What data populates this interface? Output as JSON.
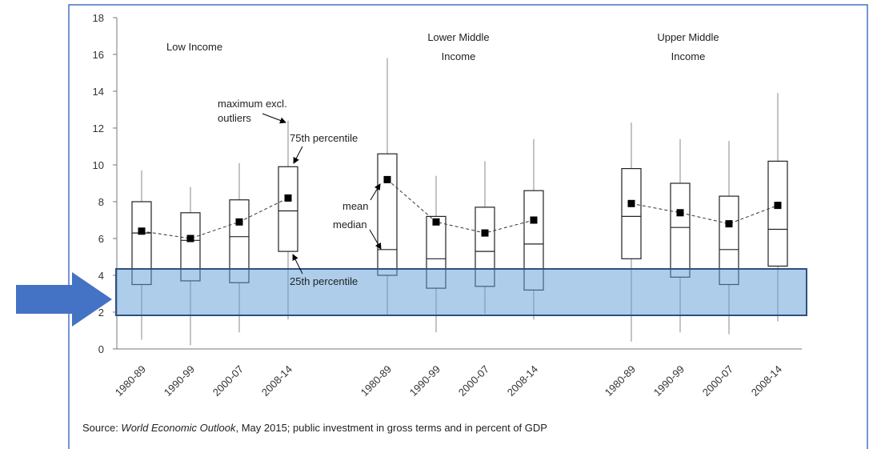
{
  "chart_data": {
    "type": "box",
    "ylim": [
      0,
      18
    ],
    "yticks": [
      0,
      2,
      4,
      6,
      8,
      10,
      12,
      14,
      16,
      18
    ],
    "groups": [
      {
        "label_lines": [
          "Low Income"
        ],
        "categories": [
          "1980-89",
          "1990-99",
          "2000-07",
          "2008-14"
        ],
        "min": [
          0.5,
          0.2,
          0.9,
          1.6
        ],
        "q1": [
          3.5,
          3.7,
          3.6,
          5.3
        ],
        "median": [
          6.3,
          5.9,
          6.1,
          7.5
        ],
        "q3": [
          8.0,
          7.4,
          8.1,
          9.9
        ],
        "max": [
          9.7,
          8.8,
          10.1,
          12.4
        ],
        "mean": [
          6.4,
          6.0,
          6.9,
          8.2
        ]
      },
      {
        "label_lines": [
          "Lower Middle",
          "Income"
        ],
        "categories": [
          "1980-89",
          "1990-99",
          "2000-07",
          "2008-14"
        ],
        "min": [
          1.8,
          0.9,
          1.9,
          1.6
        ],
        "q1": [
          4.0,
          3.3,
          3.4,
          3.2
        ],
        "median": [
          5.4,
          4.9,
          5.3,
          5.7
        ],
        "q3": [
          10.6,
          7.2,
          7.7,
          8.6
        ],
        "max": [
          15.8,
          9.4,
          10.2,
          11.4
        ],
        "mean": [
          9.2,
          6.9,
          6.3,
          7.0
        ]
      },
      {
        "label_lines": [
          "Upper Middle",
          "Income"
        ],
        "categories": [
          "1980-89",
          "1990-99",
          "2000-07",
          "2008-14"
        ],
        "min": [
          0.4,
          0.9,
          0.8,
          1.5
        ],
        "q1": [
          4.9,
          3.9,
          3.5,
          4.5
        ],
        "median": [
          7.2,
          6.6,
          5.4,
          6.5
        ],
        "q3": [
          9.8,
          9.0,
          8.3,
          10.2
        ],
        "max": [
          12.3,
          11.4,
          11.3,
          13.9
        ],
        "mean": [
          7.9,
          7.4,
          6.8,
          7.8
        ]
      }
    ],
    "annotations": {
      "max": [
        "maximum excl.",
        "outliers"
      ],
      "q3": "75th percentile",
      "mean": "mean",
      "median": "median",
      "q1": "25th percentile"
    },
    "source": [
      "Source: ",
      "World Economic Outlook",
      ", May 2015; public investment in gross terms and in percent of GDP"
    ]
  }
}
